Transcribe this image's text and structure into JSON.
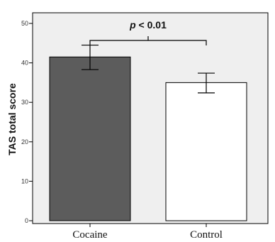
{
  "chart_data": {
    "type": "bar",
    "title": "",
    "xlabel": "",
    "ylabel": "TAS total score",
    "ylim": [
      0,
      50
    ],
    "yticks": [
      0,
      10,
      20,
      30,
      40,
      50
    ],
    "categories": [
      "Cocaine",
      "Control"
    ],
    "values": [
      41.5,
      35.0
    ],
    "errors": [
      {
        "low": 38.3,
        "high": 44.5
      },
      {
        "low": 32.4,
        "high": 37.4
      }
    ],
    "bar_colors": [
      "#5c5c5c",
      "#ffffff"
    ],
    "plot_background": "#efefef",
    "grid": false,
    "significance": {
      "between": [
        "Cocaine",
        "Control"
      ],
      "label_p": "p",
      "label_rest": " < 0.01"
    }
  }
}
